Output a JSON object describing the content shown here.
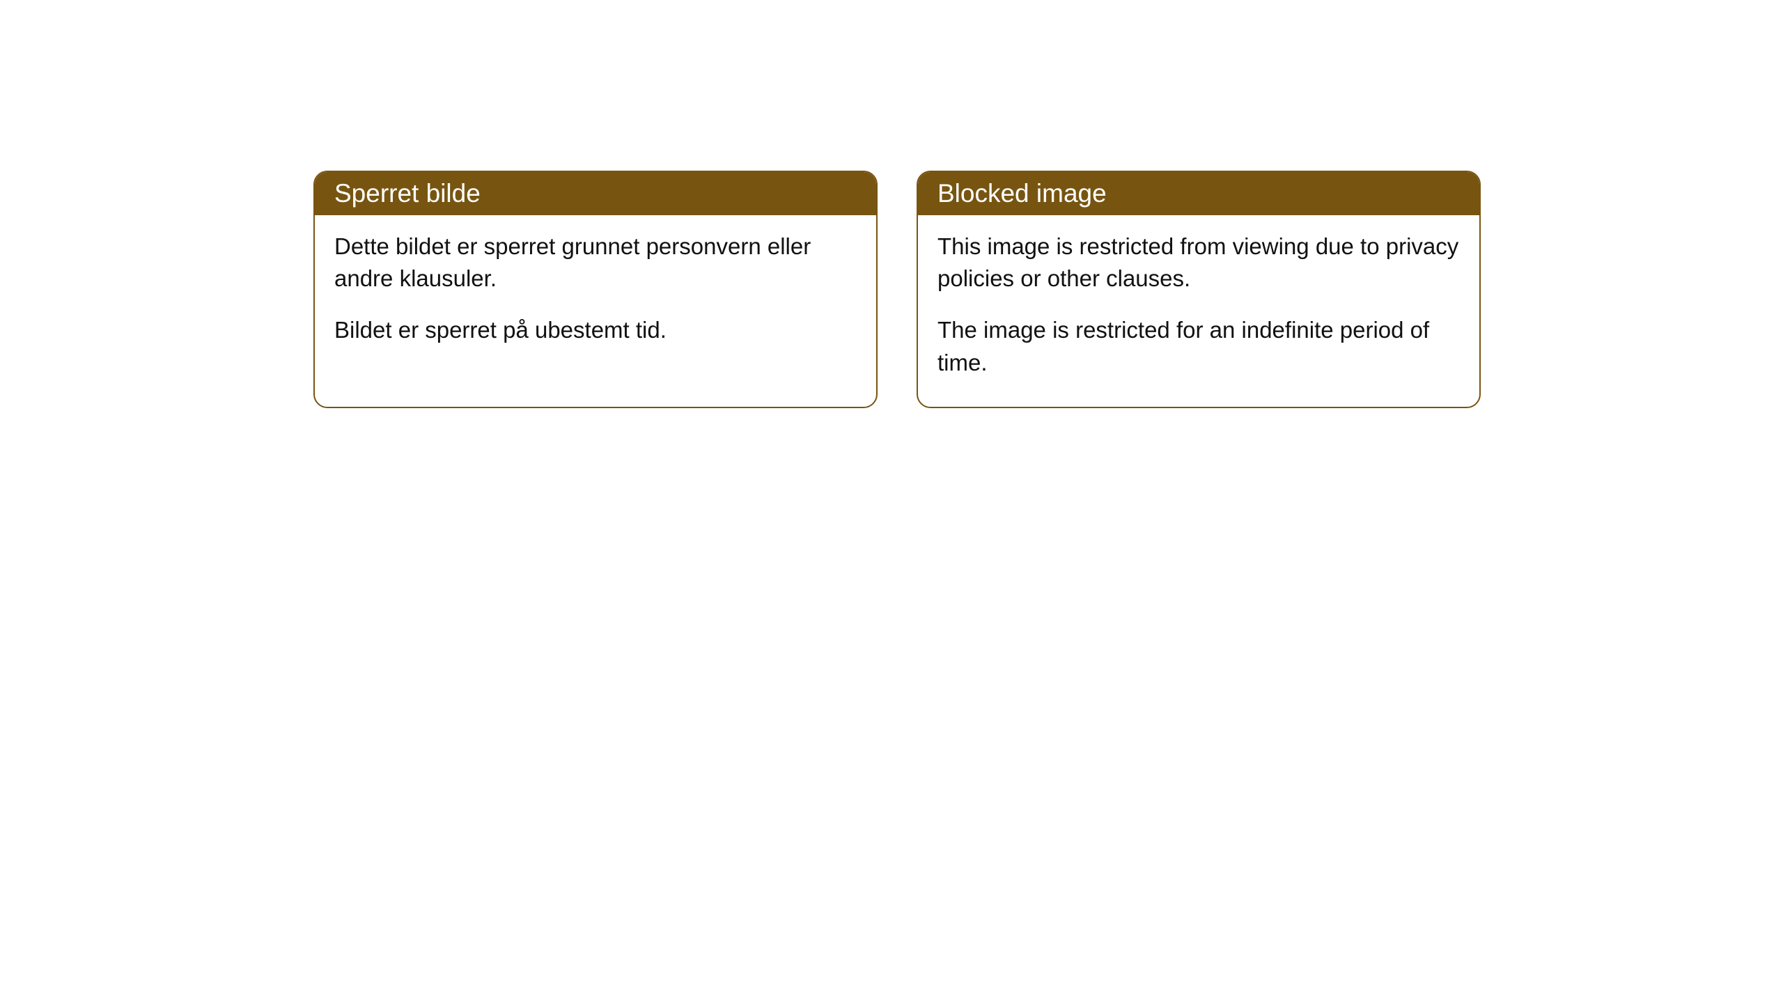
{
  "cards": [
    {
      "title": "Sperret bilde",
      "paragraphs": [
        "Dette bildet er sperret grunnet personvern eller andre klausuler.",
        "Bildet er sperret på ubestemt tid."
      ]
    },
    {
      "title": "Blocked image",
      "paragraphs": [
        "This image is restricted from viewing due to privacy policies or other clauses.",
        "The image is restricted for an indefinite period of time."
      ]
    }
  ],
  "colors": {
    "header_bg": "#775511",
    "header_text": "#ffffff",
    "border": "#775511",
    "body_bg": "#ffffff",
    "body_text": "#111111"
  },
  "typography": {
    "title_fontsize": 37,
    "body_fontsize": 33
  }
}
